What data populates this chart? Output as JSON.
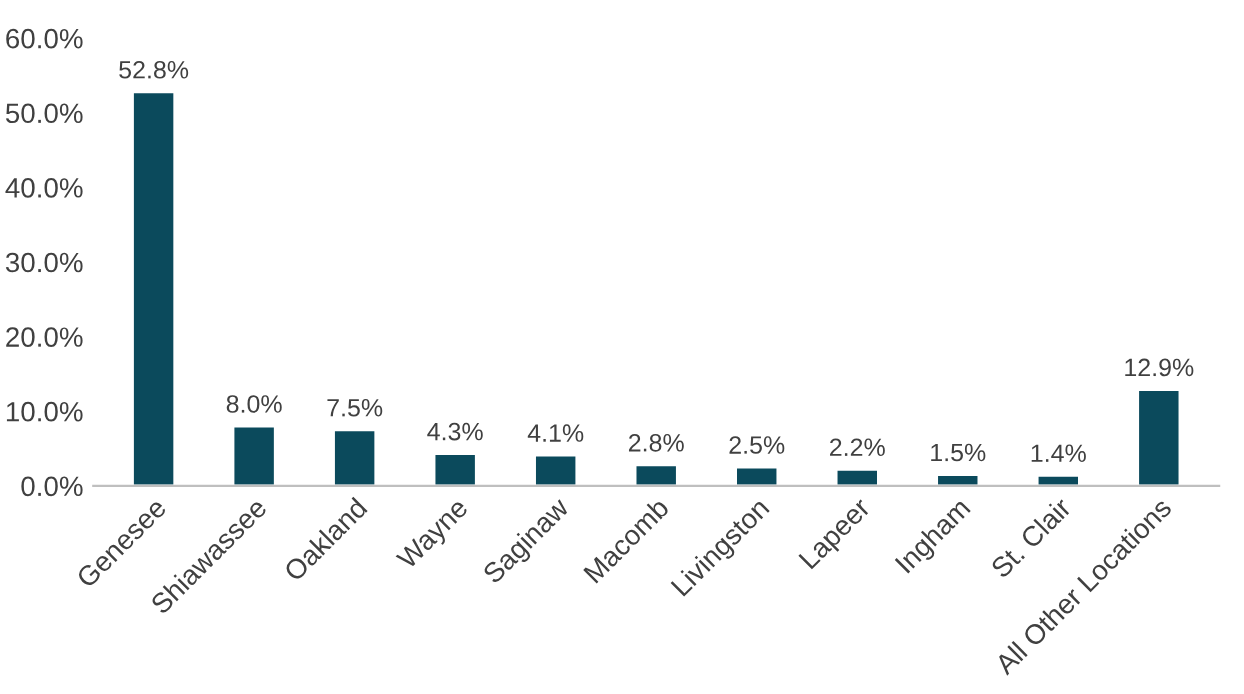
{
  "chart_data": {
    "type": "bar",
    "categories": [
      "Genesee",
      "Shiawassee",
      "Oakland",
      "Wayne",
      "Saginaw",
      "Macomb",
      "Livingston",
      "Lapeer",
      "Ingham",
      "St. Clair",
      "All Other Locations"
    ],
    "values": [
      52.8,
      8.0,
      7.5,
      4.3,
      4.1,
      2.8,
      2.5,
      2.2,
      1.5,
      1.4,
      12.9
    ],
    "value_labels": [
      "52.8%",
      "8.0%",
      "7.5%",
      "4.3%",
      "4.1%",
      "2.8%",
      "2.5%",
      "2.2%",
      "1.5%",
      "1.4%",
      "12.9%"
    ],
    "color": "#0b4a5c",
    "ylim": [
      0,
      60
    ],
    "yticks": [
      {
        "value": 0,
        "label": "0.0%"
      },
      {
        "value": 10,
        "label": "10.0%"
      },
      {
        "value": 20,
        "label": "20.0%"
      },
      {
        "value": 30,
        "label": "30.0%"
      },
      {
        "value": 40,
        "label": "40.0%"
      },
      {
        "value": 50,
        "label": "50.0%"
      },
      {
        "value": 60,
        "label": "60.0%"
      }
    ],
    "grid": false
  }
}
